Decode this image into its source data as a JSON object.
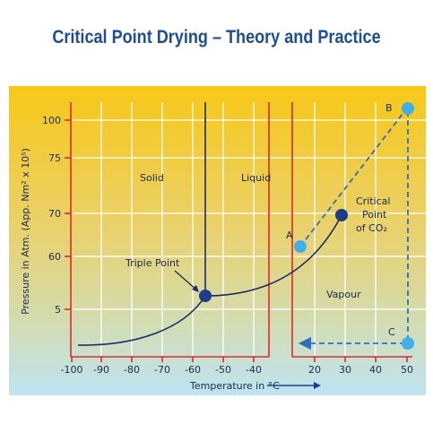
{
  "title": "Critical Point Drying – Theory and Practice",
  "axes": {
    "x_label": "Temperature in °C",
    "y_label": "Pressure in Atm. (App. Nm² x 10⁵)"
  },
  "x_ticks_left": [
    "-100",
    "-90",
    "-80",
    "-70",
    "-60",
    "-50",
    "-40"
  ],
  "x_ticks_right": [
    "20",
    "30",
    "40",
    "50"
  ],
  "y_ticks": [
    "100",
    "75",
    "70",
    "60",
    "5"
  ],
  "regions": {
    "solid": "Solid",
    "liquid": "Liquid",
    "vapour": "Vapour"
  },
  "points": {
    "triple": "Triple Point",
    "critical_line1": "Critical",
    "critical_line2": "Point",
    "critical_line3": "of CO₂",
    "a": "A",
    "b": "B",
    "c": "C"
  },
  "colors": {
    "title": "#1c4d9b",
    "grid_red": "#e0282a",
    "curve": "#1a2a66",
    "point_light": "#3fb0ea",
    "point_dark": "#1b3d8a",
    "bg_top": "#f7c717",
    "bg_bottom": "#bfe3f2"
  }
}
